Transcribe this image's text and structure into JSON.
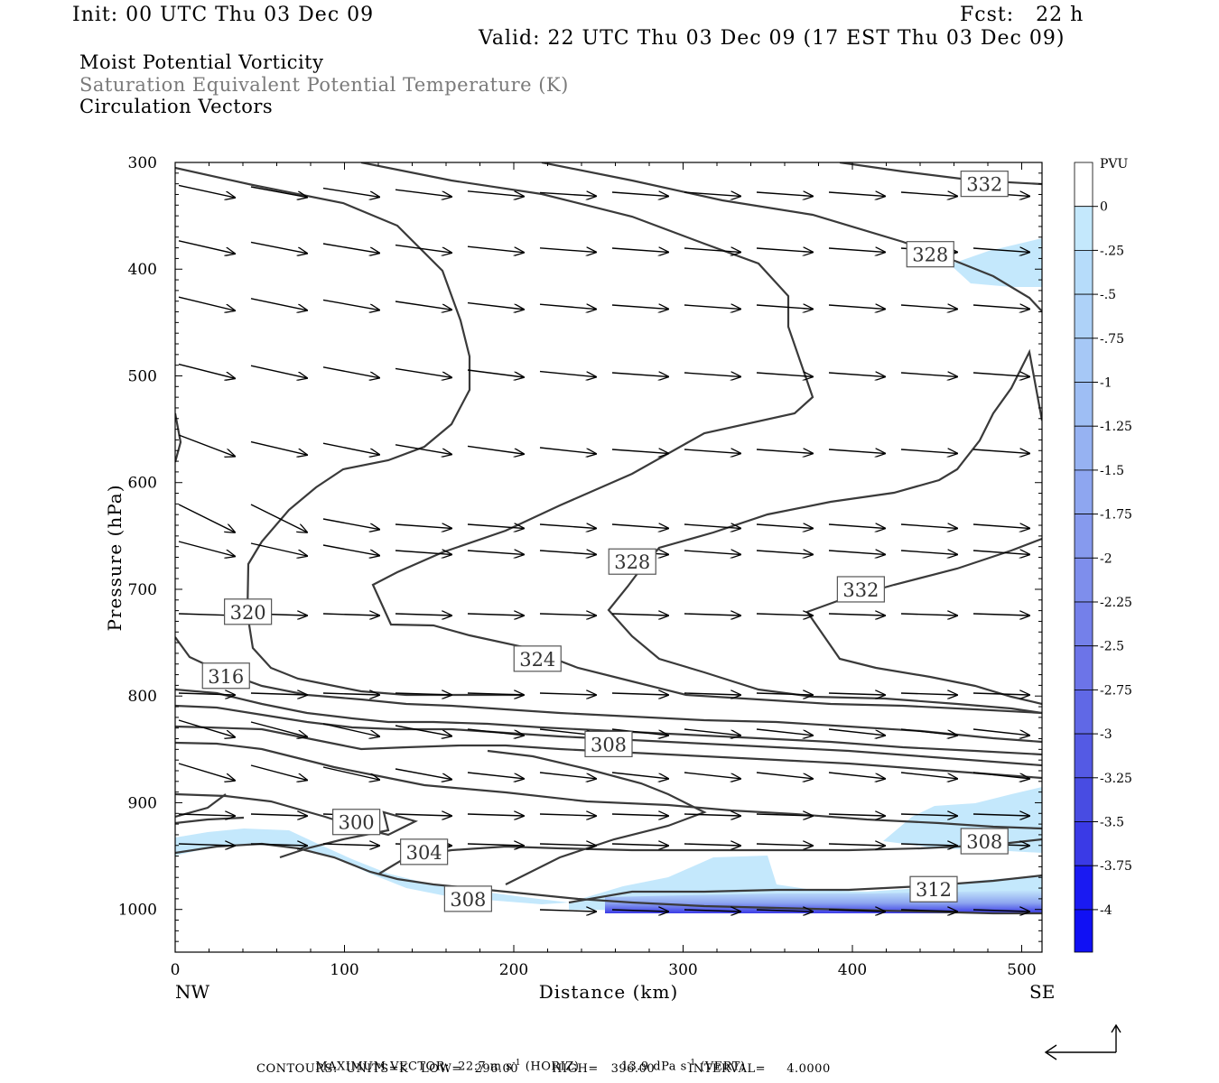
{
  "header": {
    "init": "Init: 00 UTC Thu 03 Dec 09",
    "fcst": "Fcst:   22 h",
    "valid": "Valid: 22 UTC Thu 03 Dec 09 (17 EST Thu 03 Dec 09)",
    "field1": "Moist Potential Vorticity",
    "field2": "Saturation Equivalent Potential Temperature (K)",
    "field3": "Circulation Vectors"
  },
  "footer": {
    "max_vector_label": "MAXIMUM VECTOR:",
    "max_vector_horiz": "22.7 m s",
    "horiz_tag": "(HORIZ)",
    "max_vector_vert": "13.9 dPa s",
    "vert_tag": "(VERT)",
    "exp": "-1",
    "contours": "CONTOURS:  UNITS=K   LOW=   296.00        HIGH=   396.00        INTERVAL=     4.0000"
  },
  "chart_data": {
    "type": "cross-section",
    "xlabel": "Distance (km)",
    "ylabel": "Pressure (hPa)",
    "x_ticks": [
      0,
      100,
      200,
      300,
      400,
      500
    ],
    "y_ticks": [
      300,
      400,
      500,
      600,
      700,
      800,
      900,
      1000
    ],
    "xlim": [
      0,
      512
    ],
    "ylim": [
      1040,
      300
    ],
    "x_end_labels": {
      "left": "NW",
      "right": "SE"
    },
    "colorbar": {
      "unit": "PVU",
      "labels": [
        "0",
        "-.25",
        "-.5",
        "-.75",
        "-1",
        "-1.25",
        "-1.5",
        "-1.75",
        "-2",
        "-2.25",
        "-2.5",
        "-2.75",
        "-3",
        "-3.25",
        "-3.5",
        "-3.75",
        "-4"
      ],
      "colors": [
        "#ffffff",
        "#c4e8fc",
        "#b6dcfa",
        "#aed2f8",
        "#a6c8f6",
        "#9ebef4",
        "#96b2f2",
        "#8ea6f0",
        "#869aee",
        "#7e8eec",
        "#7480ea",
        "#6c74e8",
        "#6068e6",
        "#545ae4",
        "#484ce2",
        "#3a3ae6",
        "#1a1af2"
      ]
    },
    "contour_labels": [
      {
        "text": "332",
        "x": 478,
        "p": 320
      },
      {
        "text": "328",
        "x": 446,
        "p": 386
      },
      {
        "text": "328",
        "x": 270,
        "p": 674
      },
      {
        "text": "332",
        "x": 405,
        "p": 700
      },
      {
        "text": "320",
        "x": 43,
        "p": 721
      },
      {
        "text": "324",
        "x": 214,
        "p": 765
      },
      {
        "text": "316",
        "x": 30,
        "p": 781
      },
      {
        "text": "308",
        "x": 256,
        "p": 845
      },
      {
        "text": "300",
        "x": 107,
        "p": 918
      },
      {
        "text": "304",
        "x": 147,
        "p": 946
      },
      {
        "text": "308",
        "x": 478,
        "p": 936
      },
      {
        "text": "312",
        "x": 448,
        "p": 981
      },
      {
        "text": "308",
        "x": 173,
        "p": 990
      }
    ]
  }
}
